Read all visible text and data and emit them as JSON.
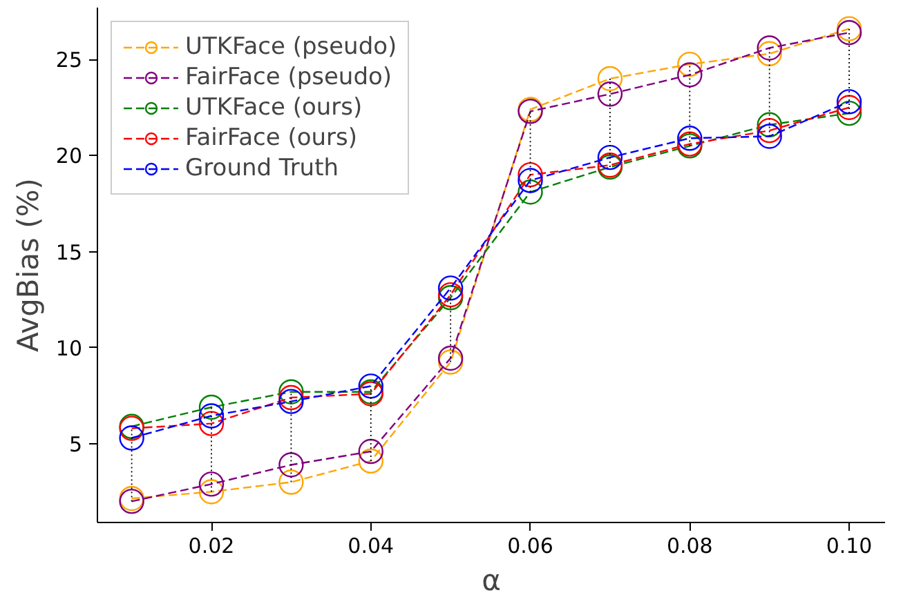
{
  "chart_data": {
    "type": "line",
    "xlabel": "α",
    "ylabel": "AvgBias (%)",
    "x": [
      0.01,
      0.02,
      0.03,
      0.04,
      0.05,
      0.06,
      0.07,
      0.08,
      0.09,
      0.1
    ],
    "xlim": [
      0.0057,
      0.1045
    ],
    "ylim": [
      0.9,
      27.7
    ],
    "xticks": [
      {
        "value": 0.02,
        "label": "0.02"
      },
      {
        "value": 0.04,
        "label": "0.04"
      },
      {
        "value": 0.06,
        "label": "0.06"
      },
      {
        "value": 0.08,
        "label": "0.08"
      },
      {
        "value": 0.1,
        "label": "0.10"
      }
    ],
    "yticks": [
      5,
      10,
      15,
      20,
      25
    ],
    "grid": false,
    "legend": "top left",
    "marker": "circle",
    "line_style": "dashed",
    "series": [
      {
        "name": "UTKFace (pseudo)",
        "color": "#ffa500",
        "values": [
          2.15,
          2.5,
          3.0,
          4.1,
          9.25,
          22.4,
          24.0,
          24.75,
          25.3,
          26.6
        ]
      },
      {
        "name": "FairFace (pseudo)",
        "color": "#800080",
        "values": [
          2.0,
          2.9,
          3.9,
          4.6,
          9.45,
          22.3,
          23.2,
          24.2,
          25.6,
          26.4
        ]
      },
      {
        "name": "UTKFace (ours)",
        "color": "#008000",
        "values": [
          5.9,
          6.9,
          7.7,
          7.7,
          12.6,
          18.1,
          19.4,
          20.5,
          21.6,
          22.2
        ]
      },
      {
        "name": "FairFace (ours)",
        "color": "#ff0000",
        "values": [
          5.8,
          6.05,
          7.4,
          7.6,
          12.75,
          19.0,
          19.5,
          20.6,
          21.3,
          22.5
        ]
      },
      {
        "name": "Ground Truth",
        "color": "#0000ff",
        "values": [
          5.3,
          6.45,
          7.2,
          8.0,
          13.1,
          18.7,
          19.9,
          20.9,
          21.0,
          22.8
        ]
      },
      {
        "color": "#000000",
        "marker": "none",
        "line_style": "dotted",
        "x": [
          0.01,
          0.01,
          null,
          0.02,
          0.02,
          null,
          0.03,
          0.03,
          null,
          0.04,
          0.04,
          null,
          0.05,
          0.05,
          null,
          0.06,
          0.06,
          null,
          0.07,
          0.07,
          null,
          0.08,
          0.08,
          null,
          0.09,
          0.09,
          null,
          0.1,
          0.1
        ],
        "values": [
          2.0,
          5.9,
          null,
          2.5,
          6.9,
          null,
          3.0,
          7.7,
          null,
          4.1,
          8.0,
          null,
          9.25,
          13.1,
          null,
          18.1,
          22.4,
          null,
          19.4,
          24.0,
          null,
          20.5,
          24.75,
          null,
          21.0,
          25.6,
          null,
          22.2,
          26.6
        ]
      }
    ]
  }
}
